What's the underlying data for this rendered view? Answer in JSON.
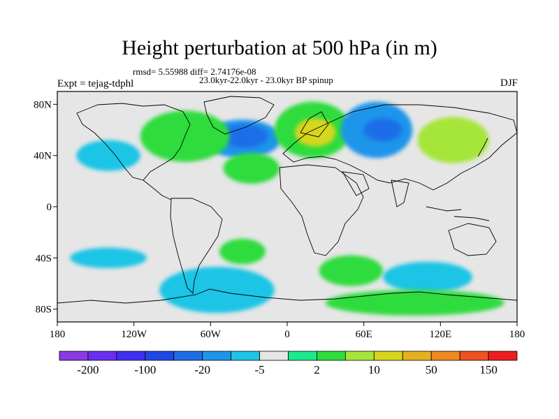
{
  "title": "Height perturbation at 500 hPa (in m)",
  "stats_line": "rmsd= 5.55988 diff= 2.74176e-08",
  "period_line": "23.0kyr-22.0kyr - 23.0kyr BP spinup",
  "experiment": "Expt = tejag-tdphl",
  "season": "DJF",
  "lat_ticks": [
    {
      "value": 80,
      "label": "80N"
    },
    {
      "value": 40,
      "label": "40N"
    },
    {
      "value": 0,
      "label": "0"
    },
    {
      "value": -40,
      "label": "40S"
    },
    {
      "value": -80,
      "label": "80S"
    }
  ],
  "lon_ticks": [
    {
      "value": -180,
      "label": "180"
    },
    {
      "value": -120,
      "label": "120W"
    },
    {
      "value": -60,
      "label": "60W"
    },
    {
      "value": 0,
      "label": "0"
    },
    {
      "value": 60,
      "label": "60E"
    },
    {
      "value": 120,
      "label": "120E"
    },
    {
      "value": 180,
      "label": "180"
    }
  ],
  "colorbar": {
    "colors": [
      "#8b3ae6",
      "#6a2ef0",
      "#3f2ff0",
      "#1f47e6",
      "#1f6ee8",
      "#1d95ea",
      "#1ec4e6",
      "#e6e6e6",
      "#1ee88c",
      "#2edc3c",
      "#a6e63a",
      "#d6d61e",
      "#e6b01e",
      "#ee8a1e",
      "#ee521e",
      "#ee1e1e"
    ],
    "labels": [
      {
        "text": "-200",
        "boundary": 1
      },
      {
        "text": "-100",
        "boundary": 3
      },
      {
        "text": "-20",
        "boundary": 5
      },
      {
        "text": "-5",
        "boundary": 7
      },
      {
        "text": "2",
        "boundary": 9
      },
      {
        "text": "10",
        "boundary": 11
      },
      {
        "text": "50",
        "boundary": 13
      },
      {
        "text": "150",
        "boundary": 15
      }
    ]
  },
  "anomaly_regions": [
    {
      "name": "nw-atlantic-low",
      "lon": -35,
      "lat": 53,
      "rlon": 30,
      "rlat": 15,
      "level": 5
    },
    {
      "name": "nw-atlantic-low-core",
      "lon": -33,
      "lat": 55,
      "rlon": 18,
      "rlat": 9,
      "level": 4
    },
    {
      "name": "europe-high",
      "lon": 20,
      "lat": 60,
      "rlon": 30,
      "rlat": 22,
      "level": 9
    },
    {
      "name": "europe-high-core",
      "lon": 22,
      "lat": 58,
      "rlon": 16,
      "rlat": 11,
      "level": 11
    },
    {
      "name": "asia-low",
      "lon": 70,
      "lat": 60,
      "rlon": 28,
      "rlat": 22,
      "level": 5
    },
    {
      "name": "asia-low-core",
      "lon": 75,
      "lat": 60,
      "rlon": 15,
      "rlat": 9,
      "level": 4
    },
    {
      "name": "east-asia-high",
      "lon": 130,
      "lat": 52,
      "rlon": 28,
      "rlat": 18,
      "level": 10
    },
    {
      "name": "pacific-low",
      "lon": -140,
      "lat": 40,
      "rlon": 25,
      "rlat": 12,
      "level": 6
    },
    {
      "name": "america-high",
      "lon": -80,
      "lat": 55,
      "rlon": 35,
      "rlat": 20,
      "level": 9
    },
    {
      "name": "atlantic-high",
      "lon": -28,
      "lat": 30,
      "rlon": 22,
      "rlat": 12,
      "level": 9
    },
    {
      "name": "south-pacific-low",
      "lon": -140,
      "lat": -40,
      "rlon": 30,
      "rlat": 8,
      "level": 6
    },
    {
      "name": "south-atlantic-high",
      "lon": -35,
      "lat": -35,
      "rlon": 18,
      "rlat": 10,
      "level": 9
    },
    {
      "name": "southern-ocean-low",
      "lon": -55,
      "lat": -65,
      "rlon": 45,
      "rlat": 18,
      "level": 6
    },
    {
      "name": "southern-ocean-high",
      "lon": 50,
      "lat": -50,
      "rlon": 25,
      "rlat": 12,
      "level": 9
    },
    {
      "name": "indian-ocean-low",
      "lon": 110,
      "lat": -55,
      "rlon": 35,
      "rlat": 12,
      "level": 6
    },
    {
      "name": "antarctic-high",
      "lon": 100,
      "lat": -75,
      "rlon": 70,
      "rlat": 10,
      "level": 9
    }
  ]
}
